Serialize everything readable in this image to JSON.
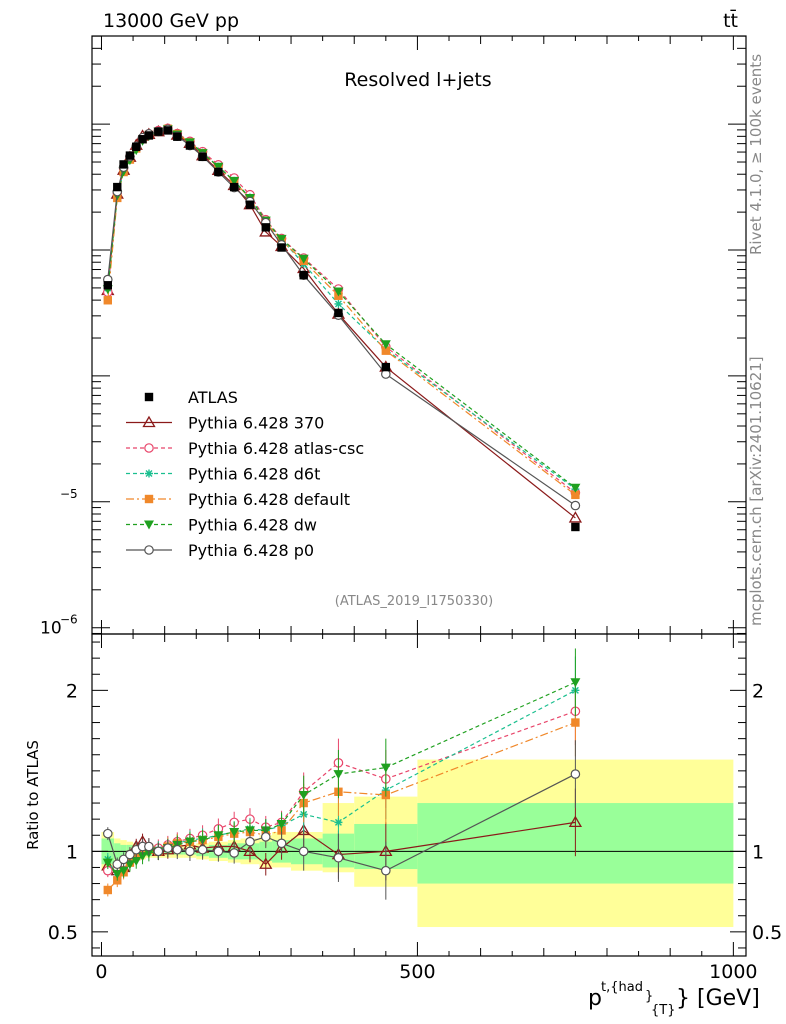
{
  "header": {
    "left": "13000 GeV pp",
    "right": "tt̄",
    "side_top": "Rivet 4.1.0, ≥ 100k events",
    "side_bottom": "mcplots.cern.ch [arXiv:2401.10621]"
  },
  "chart_data": {
    "type": "line",
    "title": "Resolved l+jets",
    "watermark": "(ATLAS_2019_I1750330)",
    "xlabel_main": "p",
    "xlabel_sup": "t,{had",
    "xlabel_sub": "}",
    "xlabel_sub2": "{T}",
    "xlabel_unit": "} [GeV]",
    "ylabel_ratio": "Ratio to ATLAS",
    "xlim": [
      -15,
      1020
    ],
    "ylim_main_log10": [
      -6.05,
      -1.3
    ],
    "ylim_ratio": [
      0.35,
      2.35
    ],
    "x_ticks": [
      0,
      500,
      1000
    ],
    "x_tick_labels": [
      "0",
      "500",
      "1000"
    ],
    "y_main_tick_labels": [
      {
        "exp": "−5",
        "base": ""
      },
      {
        "exp": "−6",
        "base": "10"
      }
    ],
    "ratio_ticks": [
      0.5,
      1,
      2
    ],
    "ratio_tick_labels": [
      "0.5",
      "1",
      "2"
    ],
    "x": [
      10,
      25,
      35,
      45,
      55,
      65,
      75,
      90,
      105,
      120,
      140,
      160,
      185,
      210,
      235,
      260,
      285,
      320,
      375,
      450,
      750
    ],
    "x_edges": [
      0,
      20,
      30,
      40,
      50,
      60,
      70,
      80,
      100,
      110,
      130,
      150,
      170,
      200,
      220,
      250,
      270,
      300,
      350,
      400,
      500,
      1000
    ],
    "data_log10": [
      -3.28,
      -2.5,
      -2.32,
      -2.25,
      -2.18,
      -2.12,
      -2.09,
      -2.06,
      -2.05,
      -2.1,
      -2.17,
      -2.26,
      -2.38,
      -2.5,
      -2.64,
      -2.82,
      -2.98,
      -3.2,
      -3.5,
      -3.93,
      -5.2
    ],
    "band_outer": [
      [
        0.88,
        1.12
      ],
      [
        0.92,
        1.08
      ],
      [
        0.93,
        1.07
      ],
      [
        0.94,
        1.06
      ],
      [
        0.95,
        1.05
      ],
      [
        0.95,
        1.05
      ],
      [
        0.96,
        1.04
      ],
      [
        0.96,
        1.04
      ],
      [
        0.96,
        1.04
      ],
      [
        0.96,
        1.04
      ],
      [
        0.96,
        1.04
      ],
      [
        0.95,
        1.05
      ],
      [
        0.94,
        1.06
      ],
      [
        0.93,
        1.07
      ],
      [
        0.92,
        1.08
      ],
      [
        0.9,
        1.1
      ],
      [
        0.9,
        1.12
      ],
      [
        0.88,
        1.12
      ],
      [
        0.87,
        1.3
      ],
      [
        0.78,
        1.34
      ],
      [
        0.53,
        1.57
      ]
    ],
    "band_inner": [
      [
        0.92,
        1.08
      ],
      [
        0.95,
        1.05
      ],
      [
        0.96,
        1.04
      ],
      [
        0.96,
        1.04
      ],
      [
        0.97,
        1.03
      ],
      [
        0.97,
        1.03
      ],
      [
        0.97,
        1.03
      ],
      [
        0.98,
        1.02
      ],
      [
        0.98,
        1.02
      ],
      [
        0.98,
        1.02
      ],
      [
        0.98,
        1.02
      ],
      [
        0.97,
        1.03
      ],
      [
        0.96,
        1.04
      ],
      [
        0.95,
        1.05
      ],
      [
        0.95,
        1.05
      ],
      [
        0.94,
        1.06
      ],
      [
        0.93,
        1.07
      ],
      [
        0.92,
        1.08
      ],
      [
        0.9,
        1.11
      ],
      [
        0.89,
        1.17
      ],
      [
        0.8,
        1.3
      ]
    ],
    "series": [
      {
        "name": "Pythia 6.428 370",
        "color": "#8B1A1A",
        "marker": "triangle-open",
        "dash": "",
        "ratio": [
          0.91,
          0.88,
          0.9,
          0.97,
          1.03,
          1.06,
          1.02,
          1.0,
          1.01,
          1.03,
          1.04,
          1.02,
          1.03,
          1.03,
          1.0,
          0.92,
          1.02,
          1.13,
          0.98,
          1.0,
          1.18
        ]
      },
      {
        "name": "Pythia 6.428 atlas-csc",
        "color": "#E8456A",
        "marker": "circle-open",
        "dash": "4,3",
        "ratio": [
          0.88,
          0.9,
          0.93,
          0.98,
          1.0,
          1.02,
          1.03,
          1.02,
          1.04,
          1.06,
          1.08,
          1.1,
          1.14,
          1.18,
          1.2,
          1.15,
          1.18,
          1.37,
          1.55,
          1.45,
          1.87
        ]
      },
      {
        "name": "Pythia 6.428 d6t",
        "color": "#1ABF8F",
        "marker": "star",
        "dash": "4,3",
        "ratio": [
          0.95,
          0.84,
          0.88,
          0.93,
          0.97,
          1.0,
          1.02,
          1.01,
          1.03,
          1.05,
          1.07,
          1.08,
          1.1,
          1.12,
          1.14,
          1.13,
          1.16,
          1.23,
          1.18,
          1.38,
          2.0
        ]
      },
      {
        "name": "Pythia 6.428 default",
        "color": "#F0882A",
        "marker": "square",
        "dash": "8,3,2,3",
        "ratio": [
          0.76,
          0.82,
          0.87,
          0.93,
          0.97,
          1.0,
          1.01,
          1.0,
          1.03,
          1.05,
          1.06,
          1.07,
          1.09,
          1.11,
          1.12,
          1.1,
          1.13,
          1.3,
          1.37,
          1.35,
          1.8
        ]
      },
      {
        "name": "Pythia 6.428 dw",
        "color": "#1FA01F",
        "marker": "triangle-down",
        "dash": "4,3",
        "ratio": [
          0.93,
          0.86,
          0.88,
          0.92,
          0.94,
          0.97,
          0.99,
          1.0,
          1.02,
          1.04,
          1.06,
          1.07,
          1.1,
          1.12,
          1.13,
          1.13,
          1.17,
          1.35,
          1.48,
          1.52,
          2.05
        ]
      },
      {
        "name": "Pythia 6.428 p0",
        "color": "#555555",
        "marker": "circle-open",
        "dash": "",
        "ratio": [
          1.11,
          0.92,
          0.95,
          0.98,
          1.01,
          1.03,
          1.03,
          1.0,
          1.02,
          1.01,
          1.0,
          1.01,
          1.0,
          0.99,
          1.06,
          1.09,
          1.05,
          1.0,
          0.96,
          0.88,
          1.48
        ]
      }
    ],
    "data_legend": "ATLAS"
  }
}
